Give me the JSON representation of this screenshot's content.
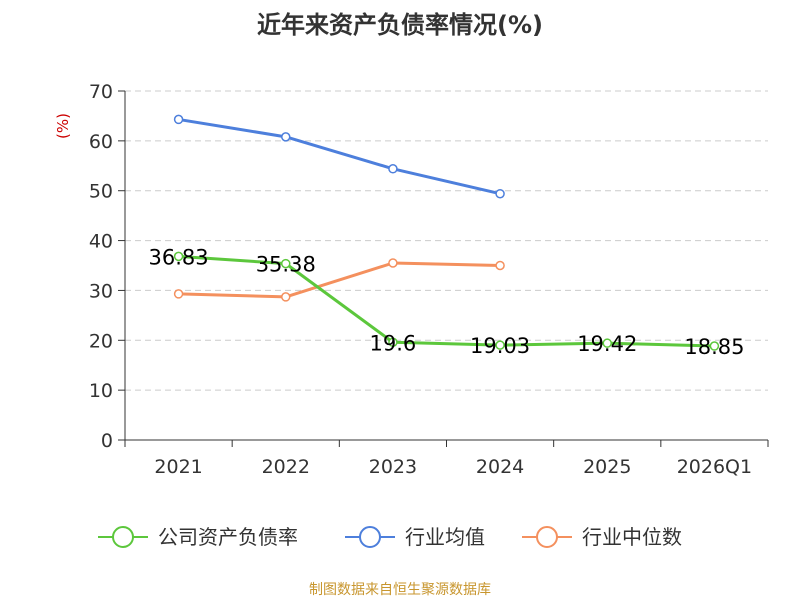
{
  "colors": {
    "company": "#5cc73c",
    "industry_avg": "#4d7fdc",
    "industry_median": "#f4905e",
    "grid": "#cccccc",
    "unit": "#cc0000",
    "source": "#c8962e"
  },
  "source_text": "制图数据来自恒生聚源数据库",
  "chart_data": {
    "type": "line",
    "title": "近年来资产负债率情况(%)",
    "ylabel": "(%)",
    "xlabel": "",
    "categories": [
      "2021",
      "2022",
      "2023",
      "2024",
      "2025",
      "2026Q1"
    ],
    "ylim": [
      0,
      70
    ],
    "yticks": [
      0,
      10,
      20,
      30,
      40,
      50,
      60,
      70
    ],
    "grid": true,
    "legend_position": "bottom",
    "series": [
      {
        "name": "公司资产负债率",
        "color_key": "company",
        "values": [
          36.83,
          35.38,
          19.6,
          19.03,
          19.42,
          18.85
        ],
        "labels": [
          "36.83",
          "35.38",
          "19.6",
          "19.03",
          "19.42",
          "18.85"
        ]
      },
      {
        "name": "行业均值",
        "color_key": "industry_avg",
        "values": [
          64.3,
          60.8,
          54.4,
          49.4,
          null,
          null
        ]
      },
      {
        "name": "行业中位数",
        "color_key": "industry_median",
        "values": [
          29.3,
          28.7,
          35.5,
          35.0,
          null,
          null
        ]
      }
    ]
  }
}
